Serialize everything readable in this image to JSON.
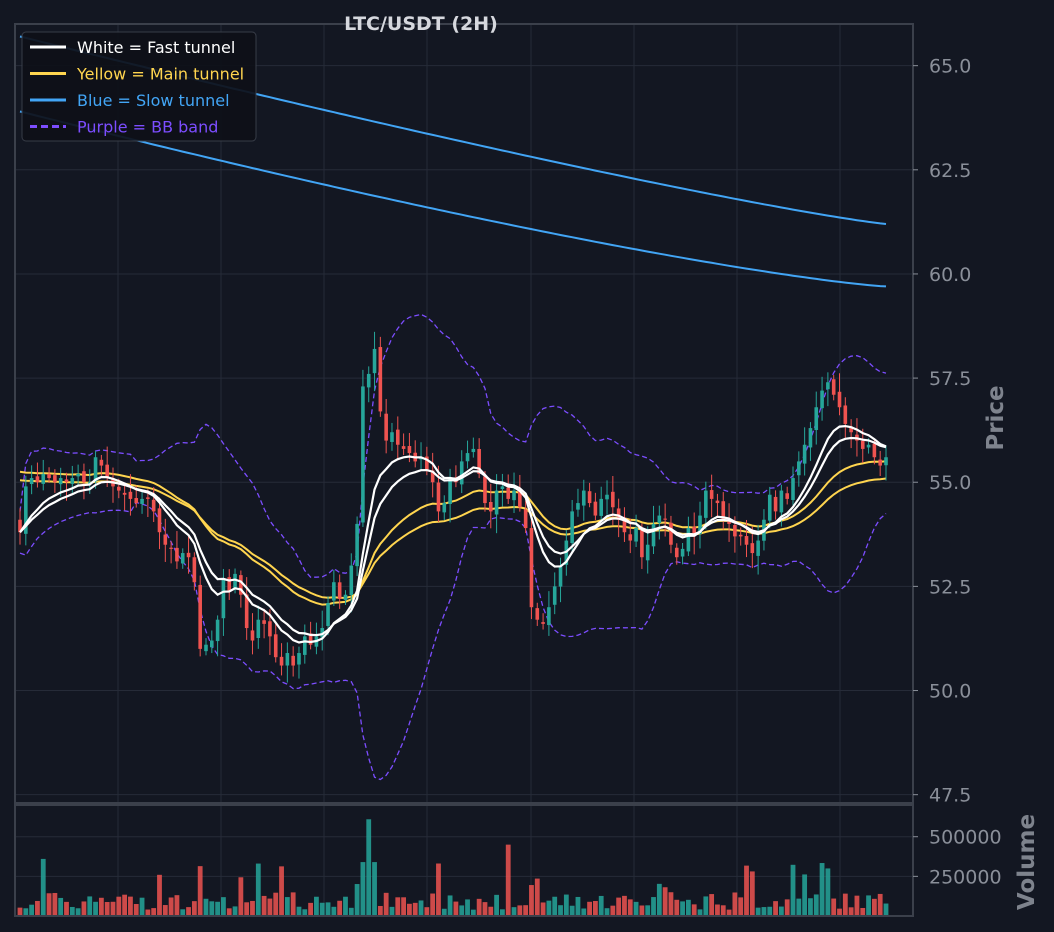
{
  "chart_data": {
    "type": "candlestick",
    "title": "LTC/USDT (2H)",
    "colors": {
      "background": "#131722",
      "grid": "#262b38",
      "frame": "#3b404b",
      "up": "#26a69a",
      "down": "#ef5350",
      "fast": "#ffffff",
      "main": "#ffd54f",
      "slow": "#42a5f5",
      "bb": "#7c4dff"
    },
    "legend": {
      "placement": "top-left",
      "entries": [
        {
          "label": "White = Fast tunnel",
          "color": "#ffffff",
          "style": "solid"
        },
        {
          "label": "Yellow = Main tunnel",
          "color": "#ffd54f",
          "style": "solid"
        },
        {
          "label": "Blue = Slow tunnel",
          "color": "#42a5f5",
          "style": "solid"
        },
        {
          "label": "Purple = BB band",
          "color": "#7c4dff",
          "style": "dashed"
        }
      ]
    },
    "price_panel": {
      "ylabel": "Price",
      "ylim": [
        47.3,
        66.0
      ],
      "ticks": [
        47.5,
        50.0,
        52.5,
        55.0,
        57.5,
        60.0,
        62.5,
        65.0
      ],
      "tick_labels": [
        "47.5",
        "50.0",
        "52.5",
        "55.0",
        "57.5",
        "60.0",
        "62.5",
        "65.0"
      ]
    },
    "volume_panel": {
      "ylabel": "Volume",
      "ylim": [
        0,
        700000
      ],
      "ticks": [
        250000,
        500000
      ],
      "tick_labels": [
        "250000",
        "500000"
      ]
    },
    "bar_count": 150,
    "candles_close": [
      53.8,
      54.9,
      55.1,
      55.0,
      55.2,
      55.1,
      55.0,
      55.1,
      55.0,
      55.1,
      55.2,
      55.0,
      55.0,
      55.6,
      55.4,
      55.1,
      54.9,
      54.8,
      54.7,
      54.6,
      54.5,
      54.6,
      54.6,
      54.3,
      53.8,
      53.5,
      53.4,
      53.1,
      53.3,
      53.2,
      52.6,
      51.0,
      51.1,
      51.2,
      51.7,
      52.7,
      52.4,
      52.8,
      52.3,
      51.5,
      51.2,
      51.7,
      51.6,
      51.3,
      50.8,
      50.6,
      50.9,
      50.6,
      50.9,
      51.3,
      51.1,
      51.3,
      51.5,
      52.1,
      52.6,
      52.2,
      52.3,
      53.0,
      54.0,
      57.3,
      57.6,
      58.2,
      56.7,
      56.0,
      56.2,
      55.9,
      55.8,
      55.7,
      55.5,
      55.6,
      55.3,
      55.0,
      54.3,
      54.5,
      55.1,
      55.0,
      55.5,
      55.7,
      55.8,
      55.2,
      54.5,
      54.3,
      54.8,
      54.9,
      54.6,
      54.8,
      54.4,
      53.9,
      52.0,
      51.7,
      51.6,
      52.0,
      52.5,
      53.0,
      53.6,
      54.3,
      54.5,
      54.8,
      54.5,
      54.2,
      54.6,
      54.7,
      54.4,
      54.1,
      53.8,
      53.6,
      53.9,
      53.2,
      53.5,
      54.0,
      54.2,
      54.1,
      53.5,
      53.2,
      53.4,
      53.9,
      53.7,
      54.2,
      54.8,
      54.6,
      54.5,
      54.1,
      54.0,
      53.7,
      53.7,
      53.5,
      53.3,
      53.6,
      54.1,
      54.7,
      54.3,
      54.8,
      54.6,
      55.1,
      55.5,
      55.9,
      56.3,
      56.8,
      57.2,
      57.4,
      57.1,
      56.8,
      56.4,
      56.2,
      56.0,
      55.8,
      55.9,
      55.6,
      55.4,
      55.6
    ]
  }
}
